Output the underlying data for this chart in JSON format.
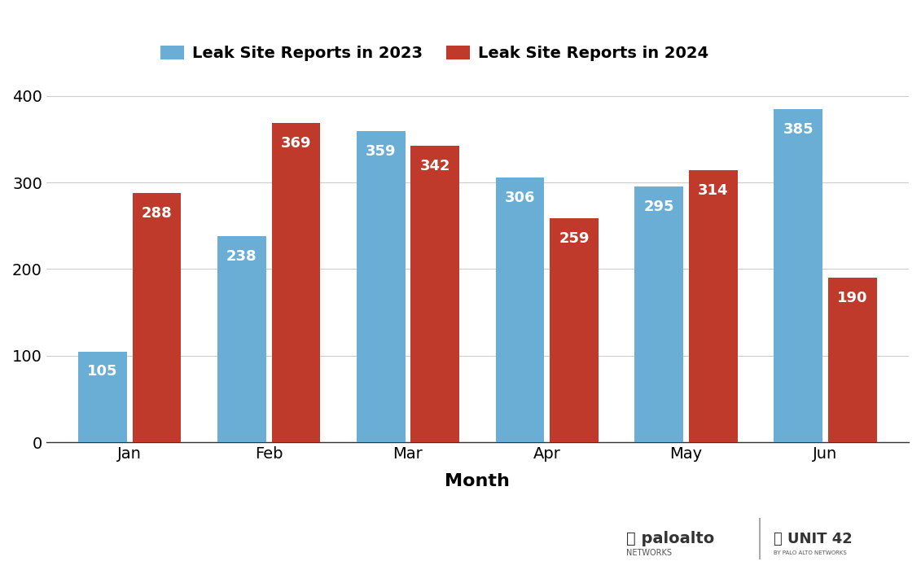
{
  "months": [
    "Jan",
    "Feb",
    "Mar",
    "Apr",
    "May",
    "Jun"
  ],
  "values_2023": [
    105,
    238,
    359,
    306,
    295,
    385
  ],
  "values_2024": [
    288,
    369,
    342,
    259,
    314,
    190
  ],
  "color_2023": "#6aaed6",
  "color_2024": "#bf3a2b",
  "xlabel": "Month",
  "ylim": [
    0,
    420
  ],
  "yticks": [
    0,
    100,
    200,
    300,
    400
  ],
  "legend_2023": "Leak Site Reports in 2023",
  "legend_2024": "Leak Site Reports in 2024",
  "bar_label_color": "white",
  "bar_label_fontsize": 13,
  "background_color": "#ffffff",
  "grid_color": "#cccccc"
}
